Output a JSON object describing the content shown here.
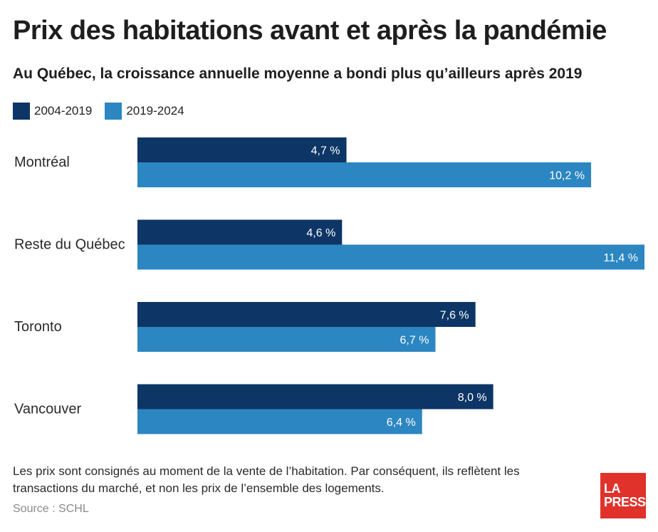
{
  "title": "Prix des habitations avant et après la pandémie",
  "subtitle": "Au Québec, la croissance annuelle moyenne a bondi plus qu’ailleurs après 2019",
  "note": "Les prix sont consignés au moment de la vente de l’habitation. Par conséquent, ils reflètent les transactions du marché, et non les prix de l’ensemble des logements.",
  "source": "Source : SCHL",
  "logo": [
    "LA",
    "PRESSE"
  ],
  "colors": {
    "series_1": "#0d3566",
    "series_2": "#2b86c1",
    "logo": "#e0312b"
  },
  "chart_data": {
    "type": "bar",
    "orientation": "horizontal",
    "title": "Prix des habitations avant et après la pandémie",
    "subtitle": "Au Québec, la croissance annuelle moyenne a bondi plus qu’ailleurs après 2019",
    "categories": [
      "Montréal",
      "Reste du Québec",
      "Toronto",
      "Vancouver"
    ],
    "series": [
      {
        "name": "2004-2019",
        "values": [
          4.7,
          4.6,
          7.6,
          8.0
        ],
        "labels": [
          "4,7 %",
          "4,6 %",
          "7,6 %",
          "8,0 %"
        ]
      },
      {
        "name": "2019-2024",
        "values": [
          10.2,
          11.4,
          6.7,
          6.4
        ],
        "labels": [
          "10,2 %",
          "11,4 %",
          "6,7 %",
          "6,4 %"
        ]
      }
    ],
    "xlim": [
      0,
      11.4
    ],
    "grid": false,
    "legend_position": "top-left"
  }
}
